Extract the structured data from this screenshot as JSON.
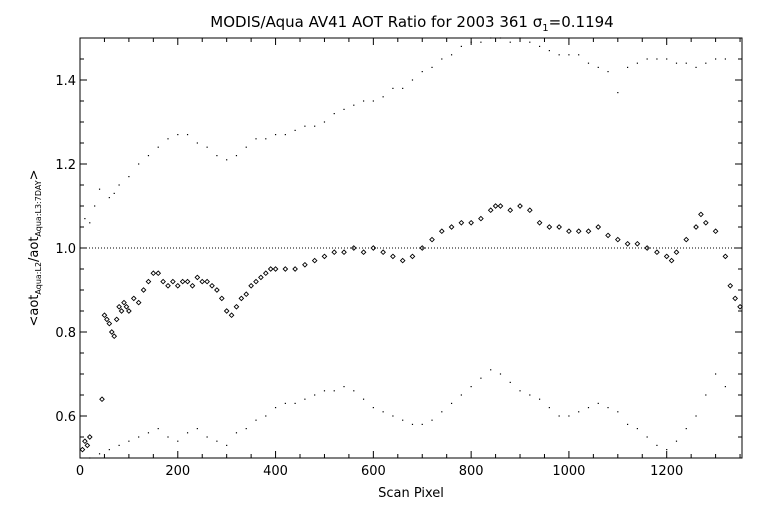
{
  "chart_data": {
    "type": "scatter",
    "title": "MODIS/Aqua AV41 AOT Ratio for 2003 361 σ1=0.1194",
    "title_parts": {
      "main": "MODIS/Aqua AV41 AOT Ratio for 2003 361 ",
      "sigma": "σ",
      "sigma_sub": "1",
      "value": "=0.1194"
    },
    "xlabel": "Scan Pixel",
    "ylabel_parts": {
      "open": "<aot",
      "sub1": "Aqua:L2",
      "mid": "/aot",
      "sub2": "Aqua:L3:7DAY",
      "close": ">"
    },
    "xlim": [
      0,
      1354
    ],
    "ylim": [
      0.5,
      1.5
    ],
    "x_ticks": [
      0,
      200,
      400,
      600,
      800,
      1000,
      1200
    ],
    "x_tick_labels": [
      "0",
      "200",
      "400",
      "600",
      "800",
      "1000",
      "1200"
    ],
    "y_ticks": [
      0.6,
      0.8,
      1.0,
      1.2,
      1.4
    ],
    "y_tick_labels": [
      "0.6",
      "0.8",
      "1.0",
      "1.2",
      "1.4"
    ],
    "reference_line": 1.0,
    "grid": false,
    "series": [
      {
        "marker": "diamond",
        "x": [
          5,
          10,
          15,
          20,
          45,
          50,
          55,
          60,
          65,
          70,
          75,
          80,
          85,
          90,
          95,
          100,
          110,
          120,
          130,
          140,
          150,
          160,
          170,
          180,
          190,
          200,
          210,
          220,
          230,
          240,
          250,
          260,
          270,
          280,
          290,
          300,
          310,
          320,
          330,
          340,
          350,
          360,
          370,
          380,
          390,
          400,
          420,
          440,
          460,
          480,
          500,
          520,
          540,
          560,
          580,
          600,
          620,
          640,
          660,
          680,
          700,
          720,
          740,
          760,
          780,
          800,
          820,
          840,
          850,
          860,
          880,
          900,
          920,
          940,
          960,
          980,
          1000,
          1020,
          1040,
          1060,
          1080,
          1100,
          1120,
          1140,
          1160,
          1180,
          1200,
          1210,
          1220,
          1240,
          1260,
          1270,
          1280,
          1300,
          1320,
          1330,
          1340,
          1350
        ],
        "y": [
          0.52,
          0.54,
          0.53,
          0.55,
          0.64,
          0.84,
          0.83,
          0.82,
          0.8,
          0.79,
          0.83,
          0.86,
          0.85,
          0.87,
          0.86,
          0.85,
          0.88,
          0.87,
          0.9,
          0.92,
          0.94,
          0.94,
          0.92,
          0.91,
          0.92,
          0.91,
          0.92,
          0.92,
          0.91,
          0.93,
          0.92,
          0.92,
          0.91,
          0.9,
          0.88,
          0.85,
          0.84,
          0.86,
          0.88,
          0.89,
          0.91,
          0.92,
          0.93,
          0.94,
          0.95,
          0.95,
          0.95,
          0.95,
          0.96,
          0.97,
          0.98,
          0.99,
          0.99,
          1.0,
          0.99,
          1.0,
          0.99,
          0.98,
          0.97,
          0.98,
          1.0,
          1.02,
          1.04,
          1.05,
          1.06,
          1.06,
          1.07,
          1.09,
          1.1,
          1.1,
          1.09,
          1.1,
          1.09,
          1.06,
          1.05,
          1.05,
          1.04,
          1.04,
          1.04,
          1.05,
          1.03,
          1.02,
          1.01,
          1.01,
          1.0,
          0.99,
          0.98,
          0.97,
          0.99,
          1.02,
          1.05,
          1.08,
          1.06,
          1.04,
          0.98,
          0.91,
          0.88,
          0.86
        ]
      },
      {
        "marker": "dot",
        "x": [
          10,
          20,
          30,
          40,
          60,
          70,
          80,
          100,
          120,
          140,
          160,
          180,
          200,
          220,
          240,
          260,
          280,
          300,
          320,
          340,
          360,
          380,
          400,
          420,
          440,
          460,
          480,
          500,
          520,
          540,
          560,
          580,
          600,
          620,
          640,
          660,
          680,
          700,
          720,
          740,
          760,
          780,
          800,
          820,
          840,
          860,
          880,
          900,
          920,
          940,
          960,
          980,
          1000,
          1020,
          1040,
          1060,
          1080,
          1100,
          1120,
          1140,
          1160,
          1180,
          1200,
          1220,
          1240,
          1260,
          1280,
          1300,
          1320
        ],
        "y": [
          1.07,
          1.06,
          1.1,
          1.14,
          1.12,
          1.13,
          1.15,
          1.17,
          1.2,
          1.22,
          1.24,
          1.26,
          1.27,
          1.27,
          1.25,
          1.24,
          1.22,
          1.21,
          1.22,
          1.24,
          1.26,
          1.26,
          1.27,
          1.27,
          1.28,
          1.29,
          1.29,
          1.3,
          1.32,
          1.33,
          1.34,
          1.35,
          1.35,
          1.36,
          1.38,
          1.38,
          1.4,
          1.42,
          1.43,
          1.45,
          1.46,
          1.48,
          1.49,
          1.49,
          1.5,
          1.5,
          1.49,
          1.5,
          1.49,
          1.48,
          1.47,
          1.46,
          1.46,
          1.46,
          1.44,
          1.43,
          1.42,
          1.37,
          1.43,
          1.44,
          1.45,
          1.45,
          1.45,
          1.44,
          1.44,
          1.43,
          1.44,
          1.45,
          1.45
        ]
      },
      {
        "marker": "dot",
        "x": [
          20,
          40,
          60,
          80,
          100,
          120,
          140,
          160,
          180,
          200,
          220,
          240,
          260,
          280,
          300,
          320,
          340,
          360,
          380,
          400,
          420,
          440,
          460,
          480,
          500,
          520,
          540,
          560,
          580,
          600,
          620,
          640,
          660,
          680,
          700,
          720,
          740,
          760,
          780,
          800,
          820,
          840,
          860,
          880,
          900,
          920,
          940,
          960,
          980,
          1000,
          1020,
          1040,
          1060,
          1080,
          1100,
          1120,
          1140,
          1160,
          1180,
          1200,
          1220,
          1240,
          1260,
          1280,
          1300,
          1320
        ],
        "y": [
          0.5,
          0.51,
          0.52,
          0.53,
          0.54,
          0.55,
          0.56,
          0.57,
          0.55,
          0.54,
          0.56,
          0.57,
          0.55,
          0.54,
          0.53,
          0.56,
          0.57,
          0.59,
          0.6,
          0.62,
          0.63,
          0.63,
          0.64,
          0.65,
          0.66,
          0.66,
          0.67,
          0.66,
          0.64,
          0.62,
          0.61,
          0.6,
          0.59,
          0.58,
          0.58,
          0.59,
          0.61,
          0.63,
          0.65,
          0.67,
          0.69,
          0.71,
          0.7,
          0.68,
          0.66,
          0.65,
          0.64,
          0.62,
          0.6,
          0.6,
          0.61,
          0.62,
          0.63,
          0.62,
          0.61,
          0.58,
          0.57,
          0.55,
          0.53,
          0.52,
          0.54,
          0.57,
          0.6,
          0.65,
          0.7,
          0.67
        ]
      }
    ]
  }
}
